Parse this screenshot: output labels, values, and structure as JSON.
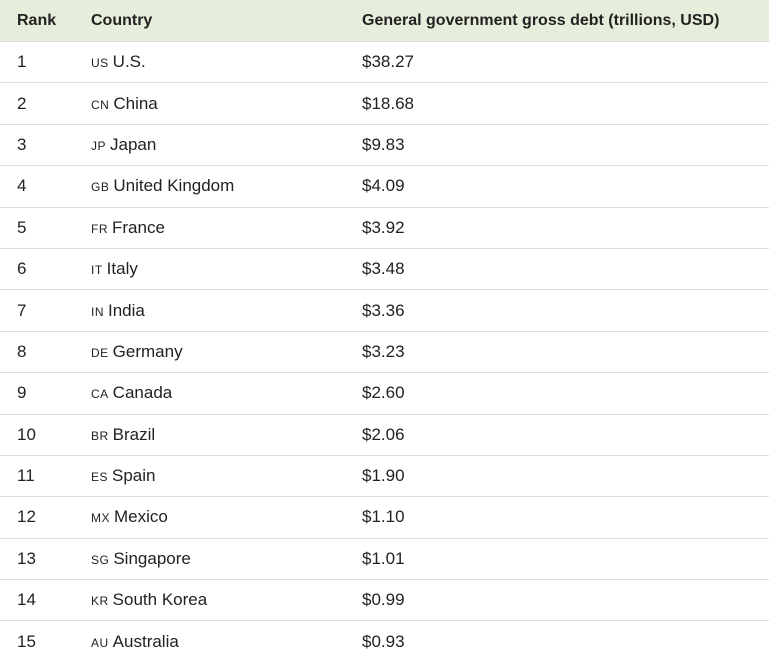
{
  "headers": {
    "rank": "Rank",
    "country": "Country",
    "debt": "General government gross debt (trillions, USD)"
  },
  "rows": [
    {
      "rank": "1",
      "code": "US",
      "country": "U.S.",
      "debt": "$38.27"
    },
    {
      "rank": "2",
      "code": "CN",
      "country": "China",
      "debt": "$18.68"
    },
    {
      "rank": "3",
      "code": "JP",
      "country": "Japan",
      "debt": "$9.83"
    },
    {
      "rank": "4",
      "code": "GB",
      "country": "United Kingdom",
      "debt": "$4.09"
    },
    {
      "rank": "5",
      "code": "FR",
      "country": "France",
      "debt": "$3.92"
    },
    {
      "rank": "6",
      "code": "IT",
      "country": "Italy",
      "debt": "$3.48"
    },
    {
      "rank": "7",
      "code": "IN",
      "country": "India",
      "debt": "$3.36"
    },
    {
      "rank": "8",
      "code": "DE",
      "country": "Germany",
      "debt": "$3.23"
    },
    {
      "rank": "9",
      "code": "CA",
      "country": "Canada",
      "debt": "$2.60"
    },
    {
      "rank": "10",
      "code": "BR",
      "country": "Brazil",
      "debt": "$2.06"
    },
    {
      "rank": "11",
      "code": "ES",
      "country": "Spain",
      "debt": "$1.90"
    },
    {
      "rank": "12",
      "code": "MX",
      "country": "Mexico",
      "debt": "$1.10"
    },
    {
      "rank": "13",
      "code": "SG",
      "country": "Singapore",
      "debt": "$1.01"
    },
    {
      "rank": "14",
      "code": "KR",
      "country": "South Korea",
      "debt": "$0.99"
    },
    {
      "rank": "15",
      "code": "AU",
      "country": "Australia",
      "debt": "$0.93"
    }
  ]
}
